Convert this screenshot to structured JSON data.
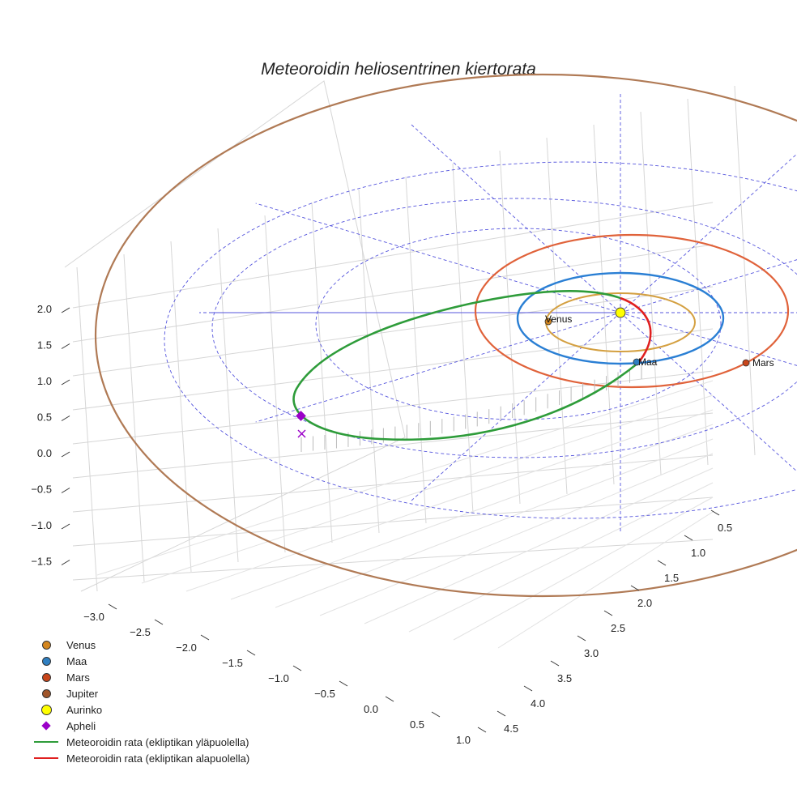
{
  "chart_data": {
    "type": "line3d",
    "title": "Meteoroidin heliosentrinen kiertorata",
    "axes": {
      "x_ticks": [
        "−3.0",
        "−2.5",
        "−2.0",
        "−1.5",
        "−1.0",
        "−0.5",
        "0.0",
        "0.5",
        "1.0"
      ],
      "y_ticks": [
        "0.5",
        "1.0",
        "1.5",
        "2.0",
        "2.5",
        "3.0",
        "3.5",
        "4.0",
        "4.5"
      ],
      "z_ticks": [
        "2.0",
        "1.5",
        "1.0",
        "0.5",
        "0.0",
        "−0.5",
        "−1.0",
        "−1.5"
      ],
      "xlim": [
        -3.2,
        1.2
      ],
      "ylim": [
        0.3,
        4.7
      ],
      "zlim": [
        -1.9,
        2.3
      ]
    },
    "planets": [
      {
        "name": "Venus",
        "label": "Venus",
        "orbit_radius_au": 0.72,
        "color": "#d4a041"
      },
      {
        "name": "Maa",
        "label": "Maa",
        "orbit_radius_au": 1.0,
        "color": "#2a7fd4"
      },
      {
        "name": "Mars",
        "label": "Mars",
        "orbit_radius_au": 1.52,
        "color": "#e0623a"
      },
      {
        "name": "Jupiter",
        "label": "",
        "orbit_radius_au": 5.2,
        "color": "#b07a55"
      }
    ],
    "sun": {
      "name": "Aurinko",
      "x": 0,
      "y": 0,
      "z": 0
    },
    "meteoroid_orbit": {
      "perihelion_au": 0.16,
      "aphelion_au": 3.3,
      "segments": [
        {
          "name": "Meteoroidin rata (ekliptikan yläpuolella)",
          "color": "#2e9c3a"
        },
        {
          "name": "Meteoroidin rata (ekliptikan alapuolella)",
          "color": "#e02020"
        }
      ]
    },
    "aphelion_point": {
      "name": "Apheli"
    },
    "legend": [
      {
        "label": "Venus",
        "kind": "dot",
        "color": "#d4861e"
      },
      {
        "label": "Maa",
        "kind": "dot",
        "color": "#2f7fc1"
      },
      {
        "label": "Mars",
        "kind": "dot",
        "color": "#c8451a"
      },
      {
        "label": "Jupiter",
        "kind": "dot",
        "color": "#a0552a"
      },
      {
        "label": "Aurinko",
        "kind": "bigdot",
        "color": "#ffff00"
      },
      {
        "label": "Apheli",
        "kind": "diamond",
        "color": "#9a00c8"
      },
      {
        "label": "Meteoroidin rata (ekliptikan yläpuolella)",
        "kind": "line",
        "color": "#2e9c3a"
      },
      {
        "label": "Meteoroidin rata (ekliptikan alapuolella)",
        "kind": "line",
        "color": "#e02020"
      }
    ]
  }
}
